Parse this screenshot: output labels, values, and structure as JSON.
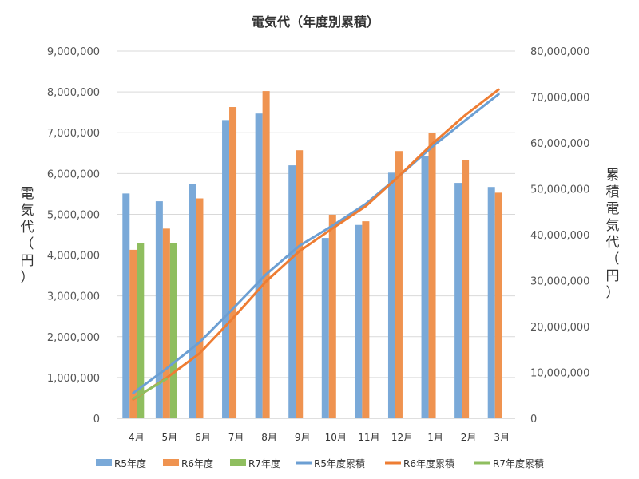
{
  "chart_data": {
    "type": "bar",
    "title": "電気代（年度別累積）",
    "categories": [
      "4月",
      "5月",
      "6月",
      "7月",
      "8月",
      "9月",
      "10月",
      "11月",
      "12月",
      "1月",
      "2月",
      "3月"
    ],
    "bar_series": [
      {
        "name": "R5年度",
        "color": "#7aa9d8",
        "values": [
          5510000,
          5320000,
          5750000,
          7310000,
          7470000,
          6200000,
          4420000,
          4740000,
          6020000,
          6420000,
          5770000,
          5670000
        ]
      },
      {
        "name": "R6年度",
        "color": "#ef9350",
        "values": [
          4130000,
          4650000,
          5390000,
          7630000,
          8020000,
          6570000,
          4990000,
          4830000,
          6550000,
          6990000,
          6330000,
          5530000
        ]
      },
      {
        "name": "R7年度",
        "color": "#8fbe5f",
        "values": [
          4290000,
          4290000,
          null,
          null,
          null,
          null,
          null,
          null,
          null,
          null,
          null,
          null
        ]
      }
    ],
    "line_series": [
      {
        "name": "R5年度累積",
        "color": "#6c9fd3",
        "values": [
          5510000,
          10830000,
          16580000,
          23890000,
          31360000,
          37560000,
          41980000,
          46720000,
          52740000,
          59160000,
          64930000,
          70600000
        ]
      },
      {
        "name": "R6年度累積",
        "color": "#ee7d33",
        "values": [
          4130000,
          8780000,
          14170000,
          21800000,
          29820000,
          36390000,
          41380000,
          46210000,
          52760000,
          59750000,
          66080000,
          71610000
        ]
      },
      {
        "name": "R7年度累積",
        "color": "#8fbe5f",
        "values": [
          4290000,
          8580000,
          null,
          null,
          null,
          null,
          null,
          null,
          null,
          null,
          null,
          null
        ]
      }
    ],
    "left_axis": {
      "label": "電気代（円）",
      "ylim": [
        0,
        9000000
      ],
      "ticks": [
        "0",
        "1,000,000",
        "2,000,000",
        "3,000,000",
        "4,000,000",
        "5,000,000",
        "6,000,000",
        "7,000,000",
        "8,000,000",
        "9,000,000"
      ]
    },
    "right_axis": {
      "label": "累積電気代（円）",
      "ylim": [
        0,
        80000000
      ],
      "ticks": [
        "0",
        "10,000,000",
        "20,000,000",
        "30,000,000",
        "40,000,000",
        "50,000,000",
        "60,000,000",
        "70,000,000",
        "80,000,000"
      ]
    },
    "grid": true,
    "legend_position": "bottom"
  }
}
